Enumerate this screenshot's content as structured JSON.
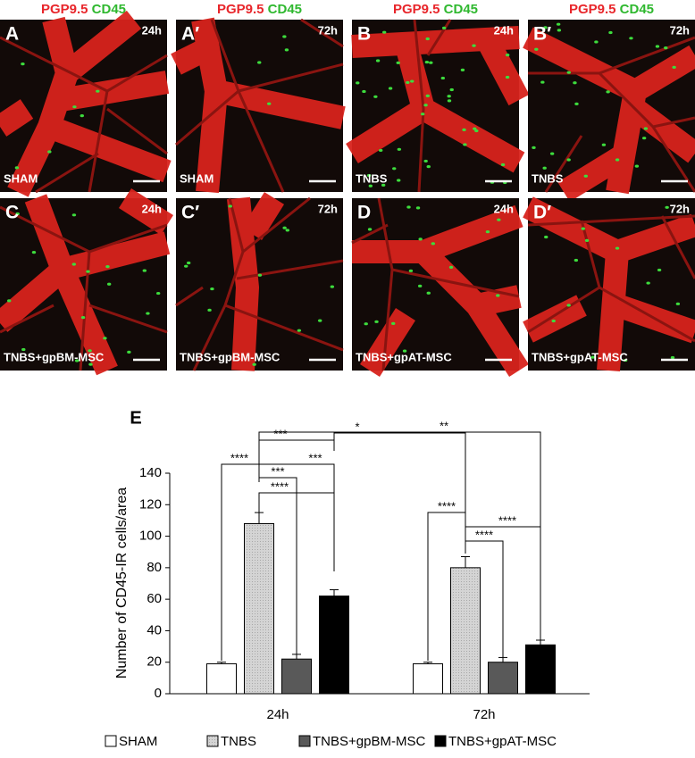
{
  "figure": {
    "columns": [
      {
        "stain1": "PGP9.5",
        "stain2": "CD45"
      },
      {
        "stain1": "PGP9.5",
        "stain2": "CD45"
      },
      {
        "stain1": "PGP9.5",
        "stain2": "CD45"
      },
      {
        "stain1": "PGP9.5",
        "stain2": "CD45"
      }
    ],
    "panels": [
      {
        "letter": "A",
        "time": "24h",
        "condition": "SHAM"
      },
      {
        "letter": "A′",
        "time": "72h",
        "condition": "SHAM"
      },
      {
        "letter": "B",
        "time": "24h",
        "condition": "TNBS"
      },
      {
        "letter": "B′",
        "time": "72h",
        "condition": "TNBS"
      },
      {
        "letter": "C",
        "time": "24h",
        "condition": "TNBS+gpBM-MSC"
      },
      {
        "letter": "C′",
        "time": "72h",
        "condition": "TNBS+gpBM-MSC"
      },
      {
        "letter": "D",
        "time": "24h",
        "condition": "TNBS+gpAT-MSC"
      },
      {
        "letter": "D′",
        "time": "72h",
        "condition": "TNBS+gpAT-MSC"
      }
    ]
  },
  "chart_data": {
    "type": "bar",
    "panel_label": "E",
    "y_label": "Number of CD45-IR cells/area",
    "categories": [
      "24h",
      "72h"
    ],
    "series": [
      {
        "name": "SHAM",
        "color": "#ffffff",
        "values": [
          19,
          19
        ],
        "errors": [
          1,
          1
        ]
      },
      {
        "name": "TNBS",
        "color": "#cccccc",
        "values": [
          108,
          80
        ],
        "errors": [
          7,
          7
        ]
      },
      {
        "name": "TNBS+gpBM-MSC",
        "color": "#595959",
        "values": [
          22,
          20
        ],
        "errors": [
          3,
          3
        ]
      },
      {
        "name": "TNBS+gpAT-MSC",
        "color": "#000000",
        "values": [
          62,
          31
        ],
        "errors": [
          4,
          3
        ]
      }
    ],
    "ylim": [
      0,
      140
    ],
    "yticks": [
      0,
      20,
      40,
      60,
      80,
      100,
      120,
      140
    ],
    "annotations": [
      "**",
      "*",
      "***",
      "****",
      "***",
      "***",
      "****",
      "****",
      "****",
      "****"
    ]
  }
}
